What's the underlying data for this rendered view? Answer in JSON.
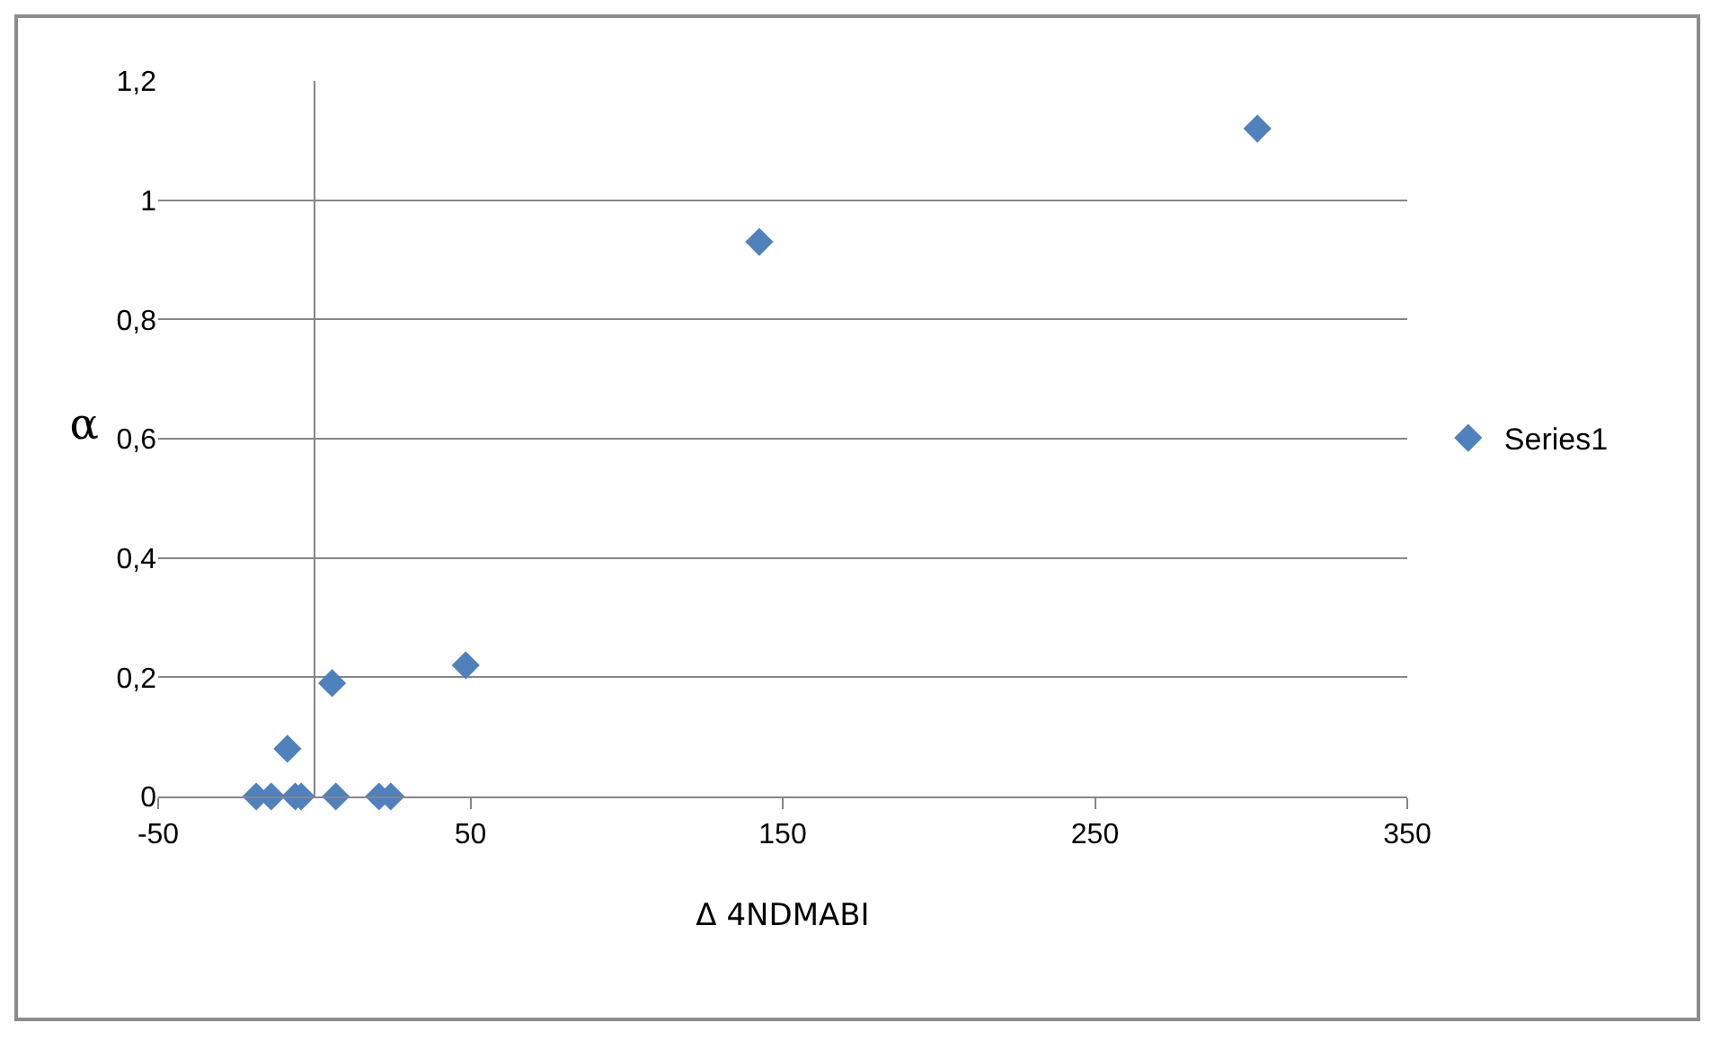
{
  "chart_data": {
    "type": "scatter",
    "xlabel": "Δ 4NDMABI",
    "ylabel": "α",
    "xlim": [
      -50,
      350
    ],
    "xticks": [
      -50,
      50,
      150,
      250,
      350
    ],
    "ylim": [
      0,
      1.2
    ],
    "yticks": [
      0,
      {
        "value": 0.2,
        "label": "0,2"
      },
      {
        "value": 0.4,
        "label": "0,4"
      },
      {
        "value": 0.6,
        "label": "0,6"
      },
      {
        "value": 0.8,
        "label": "0,8"
      },
      1,
      {
        "value": 1.2,
        "label": "1,2"
      }
    ],
    "grid": "y",
    "legend": "right",
    "marker": "diamond",
    "series": [
      {
        "name": "Series1",
        "color": "#4f81bd",
        "x": [
          -18.6,
          -13.8,
          -6.1,
          -4.2,
          6.9,
          20.7,
          24.5,
          -8.6,
          5.7,
          48.5,
          142.5,
          302
        ],
        "values": [
          0,
          0,
          0,
          0,
          0,
          0,
          0,
          0.08,
          0.19,
          0.22,
          0.93,
          1.12
        ]
      }
    ]
  }
}
